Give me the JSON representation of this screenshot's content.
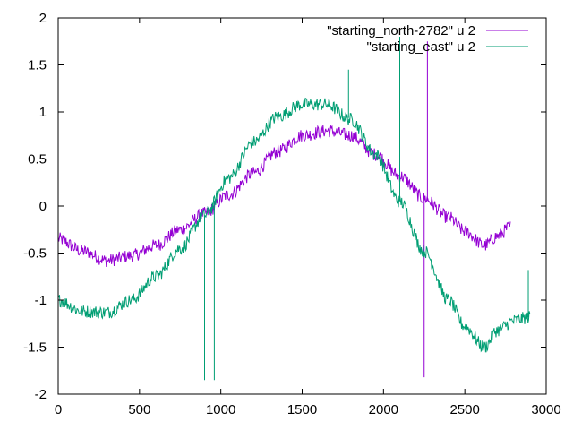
{
  "chart_data": {
    "type": "line",
    "title": "",
    "xlabel": "",
    "ylabel": "",
    "xlim": [
      0,
      3000
    ],
    "ylim": [
      -2,
      2
    ],
    "grid": false,
    "legend_position": "top-right",
    "x_ticks": [
      0,
      500,
      1000,
      1500,
      2000,
      2500,
      3000
    ],
    "y_ticks": [
      -2,
      -1.5,
      -1,
      -0.5,
      0,
      0.5,
      1,
      1.5,
      2
    ],
    "x_tick_labels": [
      "0",
      "500",
      "1000",
      "1500",
      "2000",
      "2500",
      "3000"
    ],
    "y_tick_labels": [
      "-2",
      "-1.5",
      "-1",
      "-0.5",
      "0",
      "0.5",
      "1",
      "1.5",
      "2"
    ],
    "series": [
      {
        "name": "\"starting_north-2782\" u 2",
        "color": "#9400d3",
        "x": [
          0,
          150,
          300,
          450,
          600,
          750,
          900,
          1050,
          1200,
          1350,
          1500,
          1650,
          1800,
          1950,
          2100,
          2250,
          2400,
          2500,
          2620,
          2700,
          2782
        ],
        "y": [
          -0.35,
          -0.48,
          -0.58,
          -0.53,
          -0.42,
          -0.25,
          -0.08,
          0.12,
          0.35,
          0.58,
          0.75,
          0.8,
          0.75,
          0.55,
          0.32,
          0.08,
          -0.12,
          -0.27,
          -0.42,
          -0.32,
          -0.22
        ],
        "spikes": [
          [
            2250,
            -1.82
          ],
          [
            2270,
            1.75
          ]
        ]
      },
      {
        "name": "\"starting_east\" u 2",
        "color": "#009e73",
        "x": [
          0,
          150,
          300,
          450,
          600,
          750,
          900,
          1050,
          1200,
          1350,
          1500,
          1650,
          1800,
          1950,
          2100,
          2250,
          2400,
          2500,
          2620,
          2700,
          2800,
          2900
        ],
        "y": [
          -1.0,
          -1.12,
          -1.13,
          -1.0,
          -0.75,
          -0.45,
          -0.1,
          0.3,
          0.68,
          0.95,
          1.08,
          1.08,
          0.92,
          0.55,
          0.05,
          -0.48,
          -1.0,
          -1.28,
          -1.5,
          -1.32,
          -1.22,
          -1.18
        ],
        "spikes": [
          [
            900,
            -1.85
          ],
          [
            960,
            -1.85
          ],
          [
            1785,
            1.45
          ],
          [
            2100,
            1.8
          ],
          [
            2890,
            -0.68
          ]
        ]
      }
    ]
  }
}
